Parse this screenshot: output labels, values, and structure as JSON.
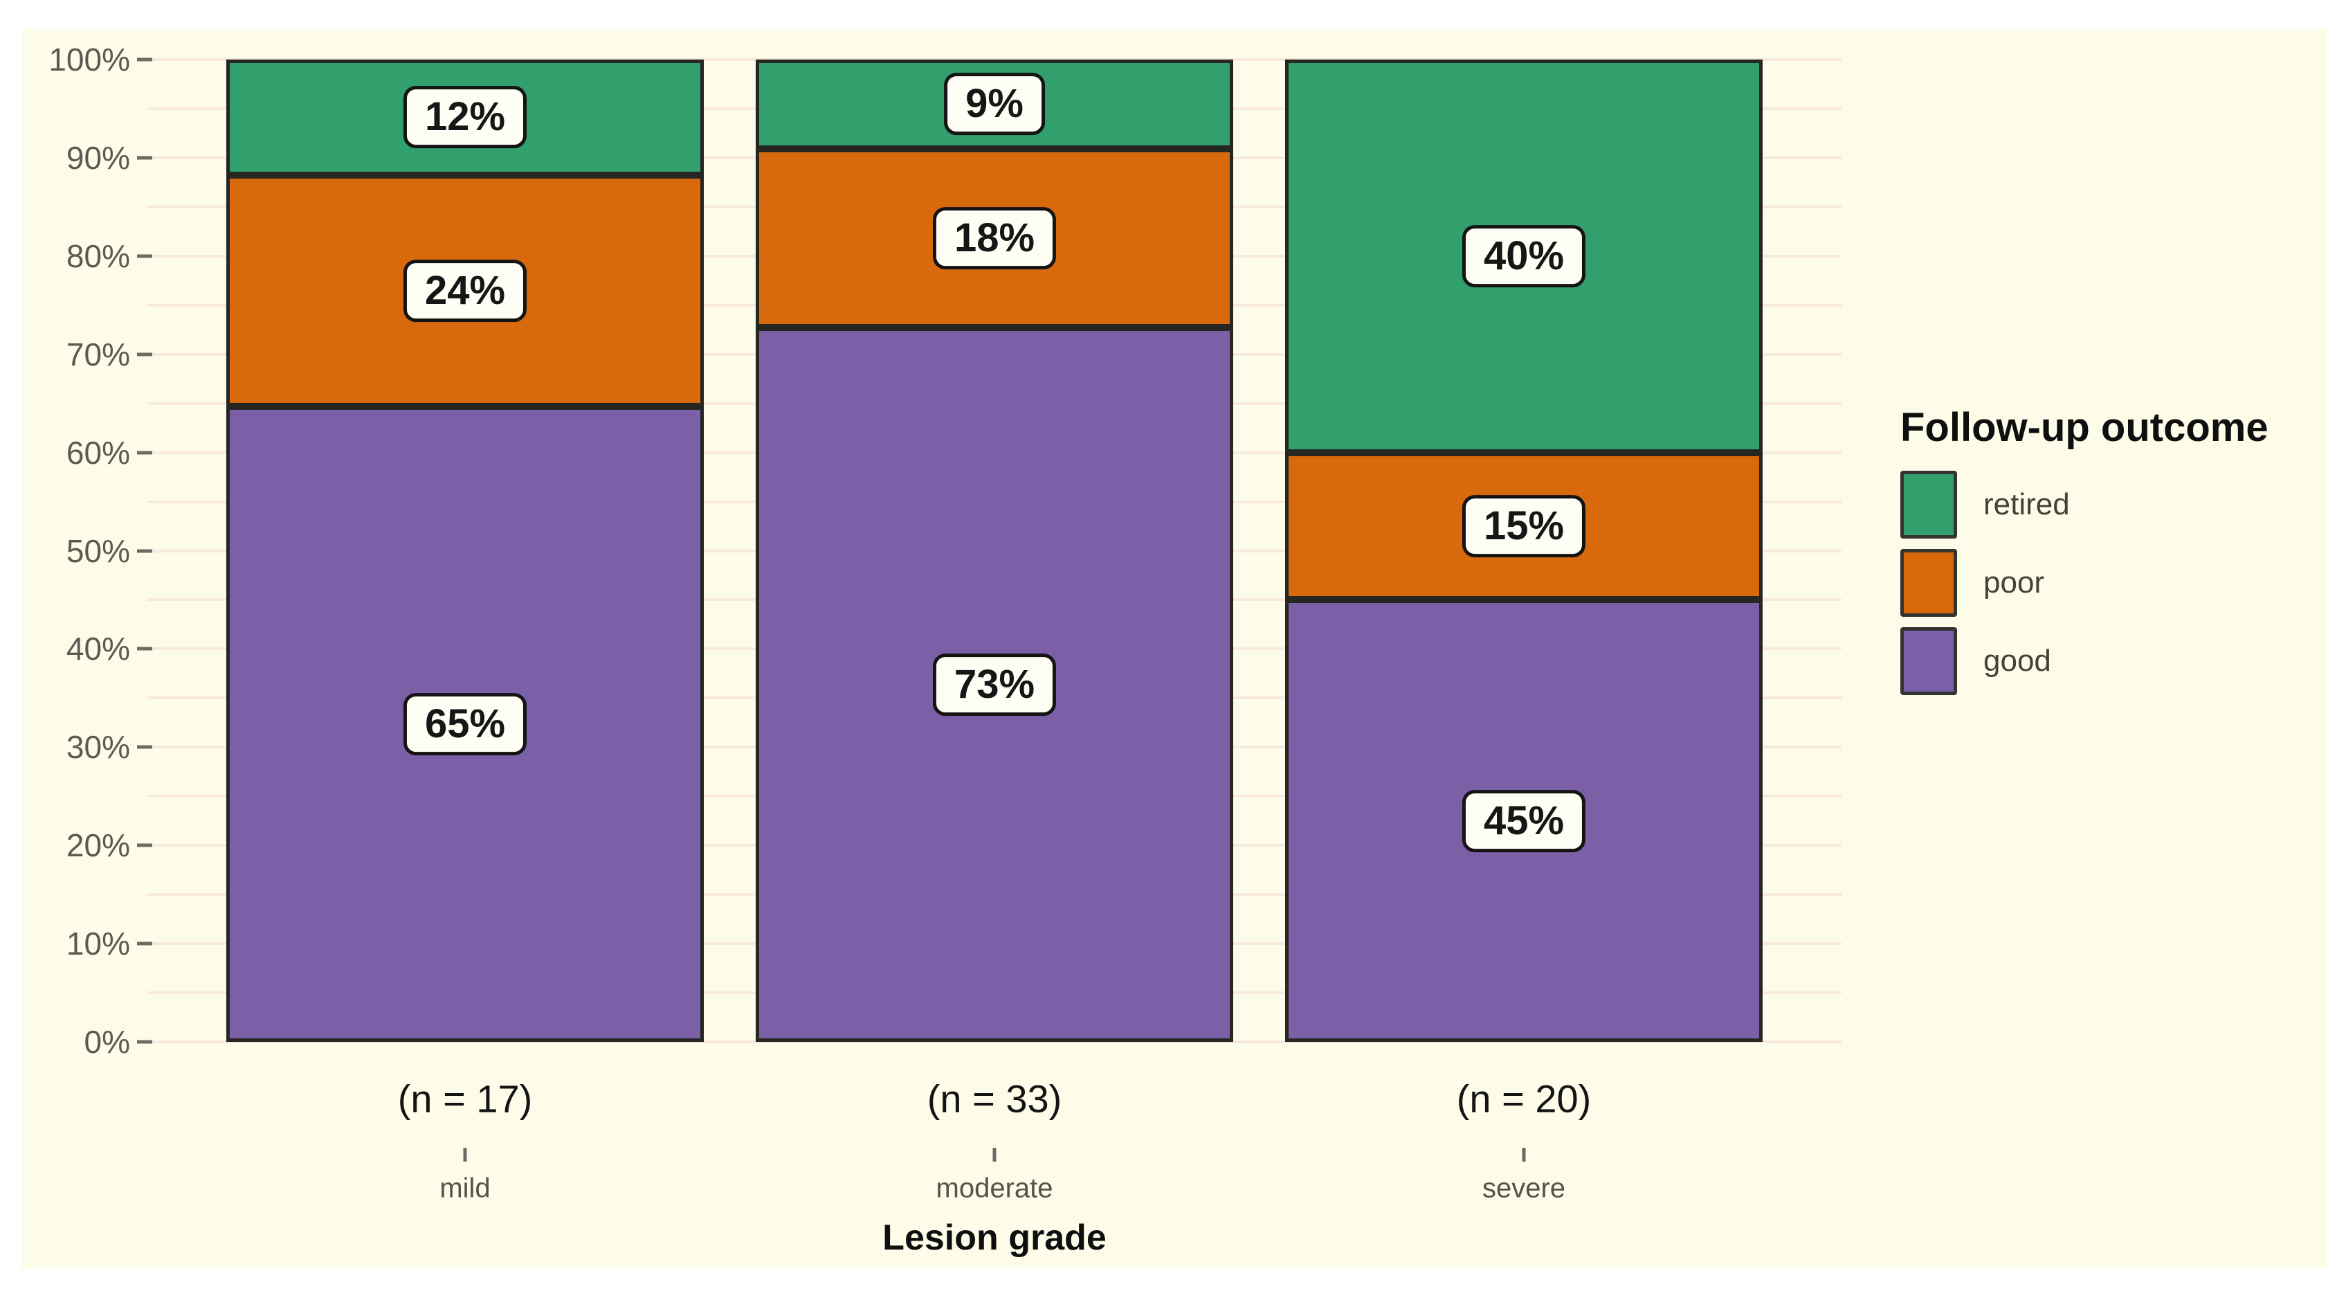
{
  "colors": {
    "page_bg": "#FFFFFF",
    "plot_bg": "#FDFCE8",
    "gridline": "#F8E9DE",
    "bar_border": "#262622",
    "label_box_bg": "#FFFEF4",
    "label_box_border": "#141414",
    "label_text": "#161616",
    "y_tick_text": "#5C5952",
    "tick_mark": "#6E6A63",
    "n_label_text": "#141414",
    "category_text": "#55524C",
    "axis_title_text": "#0F0F0F",
    "legend_title_text": "#0F0F0F",
    "legend_label_text": "#444139",
    "retired_green": "#31A06C",
    "poor_orange": "#D8690D",
    "good_purple": "#7B60A8"
  },
  "chart_data": {
    "type": "bar",
    "subtype": "stacked-percent-vertical",
    "title": "",
    "xlabel": "Lesion grade",
    "ylabel": "",
    "categories": [
      "mild",
      "moderate",
      "severe"
    ],
    "category_n_labels": [
      "(n = 17)",
      "(n = 33)",
      "(n = 20)"
    ],
    "y_axis": {
      "min": 0,
      "max": 100,
      "major_tick_step": 10,
      "minor_grid_step": 5,
      "tick_suffix": "%"
    },
    "grid": "faint pink horizontal lines every 5%, major and minor identical",
    "legend": {
      "title": "Follow-up outcome",
      "position": "right",
      "entries": [
        "retired",
        "poor",
        "good"
      ]
    },
    "stack_order_top_to_bottom": [
      "retired",
      "poor",
      "good"
    ],
    "series": [
      {
        "name": "retired",
        "color": "#31A06C",
        "values_pct": [
          11.76,
          9.09,
          40.0
        ],
        "labels": [
          "12%",
          "9%",
          "40%"
        ]
      },
      {
        "name": "poor",
        "color": "#D8690D",
        "values_pct": [
          23.53,
          18.18,
          15.0
        ],
        "labels": [
          "24%",
          "18%",
          "15%"
        ]
      },
      {
        "name": "good",
        "color": "#7B60A8",
        "values_pct": [
          64.71,
          72.73,
          45.0
        ],
        "labels": [
          "65%",
          "73%",
          "45%"
        ]
      }
    ]
  }
}
